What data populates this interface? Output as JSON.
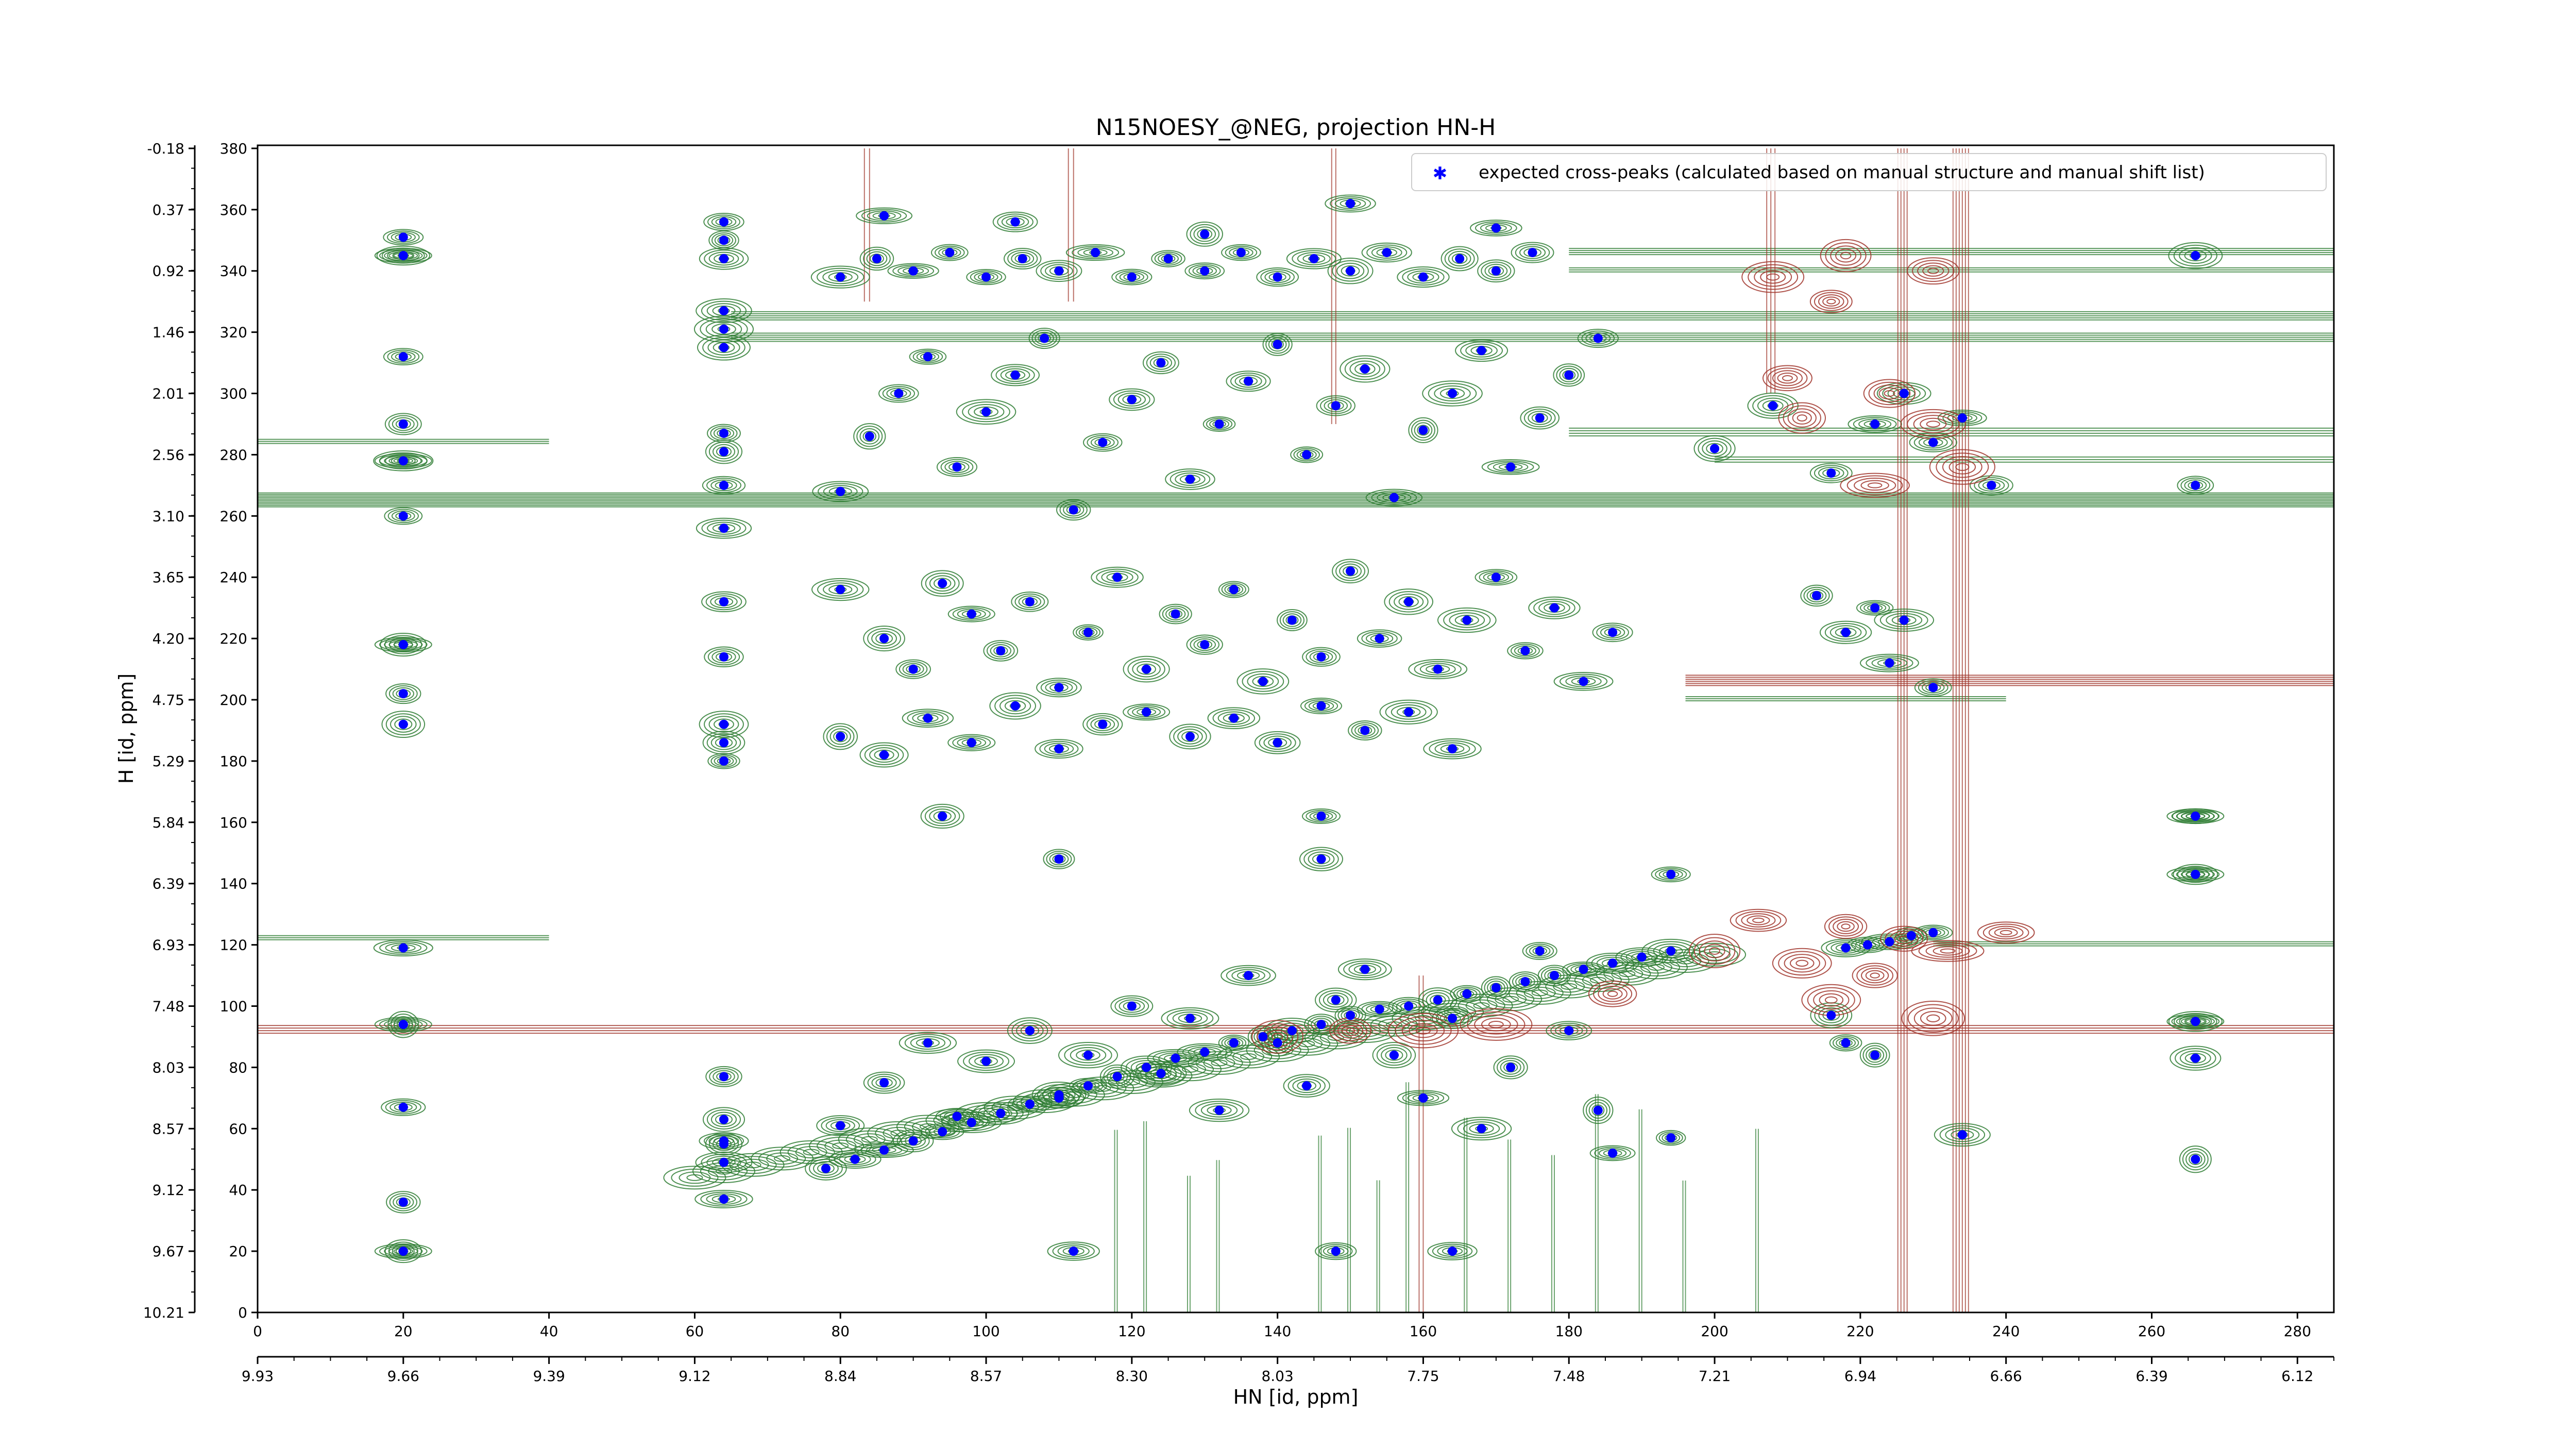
{
  "chart_data": {
    "type": "scatter",
    "title": "N15NOESY_@NEG, projection HN-H",
    "xlabel": "HN [id, ppm]",
    "ylabel": "H [id, ppm]",
    "x_index_ticks": [
      "0",
      "20",
      "40",
      "60",
      "80",
      "100",
      "120",
      "140",
      "160",
      "180",
      "200",
      "220",
      "240",
      "260",
      "280"
    ],
    "x_ppm_ticks": [
      "9.93",
      "9.66",
      "9.39",
      "9.12",
      "8.84",
      "8.57",
      "8.30",
      "8.03",
      "7.75",
      "7.48",
      "7.21",
      "6.94",
      "6.66",
      "6.39",
      "6.12"
    ],
    "y_index_ticks": [
      "0",
      "20",
      "40",
      "60",
      "80",
      "100",
      "120",
      "140",
      "160",
      "180",
      "200",
      "220",
      "240",
      "260",
      "280",
      "300",
      "320",
      "340",
      "360",
      "380"
    ],
    "y_ppm_ticks": [
      "10.21",
      "9.67",
      "9.12",
      "8.57",
      "8.03",
      "7.48",
      "6.93",
      "6.39",
      "5.84",
      "5.29",
      "4.75",
      "4.20",
      "3.65",
      "3.10",
      "2.56",
      "2.01",
      "1.46",
      "0.92",
      "0.37",
      "-0.18"
    ],
    "xlim": [
      0,
      285
    ],
    "ylim": [
      0,
      381
    ],
    "legend": {
      "label": "expected cross-peaks (calculated based on manual structure and manual shift list)",
      "position": "top-right"
    },
    "colors": {
      "positive_contour": "#2e7d32",
      "negative_contour": "#a0342a",
      "marker": "#0000ff"
    },
    "series": [
      {
        "name": "expected cross-peaks (calculated based on manual structure and manual shift list)",
        "points": [
          [
            20,
            20
          ],
          [
            20,
            36
          ],
          [
            20,
            67
          ],
          [
            20,
            94
          ],
          [
            20,
            119
          ],
          [
            20,
            192
          ],
          [
            20,
            202
          ],
          [
            20,
            218
          ],
          [
            20,
            260
          ],
          [
            20,
            278
          ],
          [
            20,
            290
          ],
          [
            20,
            312
          ],
          [
            20,
            345
          ],
          [
            20,
            351
          ],
          [
            64,
            37
          ],
          [
            64,
            49
          ],
          [
            64,
            55
          ],
          [
            64,
            63
          ],
          [
            64,
            56
          ],
          [
            64,
            77
          ],
          [
            64,
            180
          ],
          [
            64,
            186
          ],
          [
            64,
            192
          ],
          [
            64,
            214
          ],
          [
            64,
            232
          ],
          [
            64,
            256
          ],
          [
            64,
            270
          ],
          [
            64,
            281
          ],
          [
            64,
            287
          ],
          [
            64,
            315
          ],
          [
            64,
            321
          ],
          [
            64,
            327
          ],
          [
            64,
            344
          ],
          [
            64,
            350
          ],
          [
            64,
            356
          ],
          [
            78,
            47
          ],
          [
            82,
            50
          ],
          [
            86,
            53
          ],
          [
            90,
            56
          ],
          [
            94,
            59
          ],
          [
            98,
            62
          ],
          [
            102,
            65
          ],
          [
            106,
            68
          ],
          [
            110,
            71
          ],
          [
            114,
            74
          ],
          [
            118,
            77
          ],
          [
            122,
            80
          ],
          [
            126,
            83
          ],
          [
            130,
            85
          ],
          [
            134,
            88
          ],
          [
            138,
            90
          ],
          [
            142,
            92
          ],
          [
            146,
            94
          ],
          [
            150,
            97
          ],
          [
            154,
            99
          ],
          [
            158,
            100
          ],
          [
            162,
            102
          ],
          [
            166,
            104
          ],
          [
            170,
            106
          ],
          [
            174,
            108
          ],
          [
            178,
            110
          ],
          [
            182,
            112
          ],
          [
            186,
            114
          ],
          [
            190,
            116
          ],
          [
            194,
            118
          ],
          [
            218,
            119
          ],
          [
            221,
            120
          ],
          [
            224,
            121
          ],
          [
            227,
            123
          ],
          [
            230,
            124
          ],
          [
            80,
            61
          ],
          [
            86,
            75
          ],
          [
            92,
            88
          ],
          [
            96,
            64
          ],
          [
            100,
            82
          ],
          [
            106,
            92
          ],
          [
            110,
            70
          ],
          [
            114,
            84
          ],
          [
            120,
            100
          ],
          [
            124,
            78
          ],
          [
            128,
            96
          ],
          [
            132,
            66
          ],
          [
            136,
            110
          ],
          [
            140,
            88
          ],
          [
            144,
            74
          ],
          [
            148,
            102
          ],
          [
            152,
            112
          ],
          [
            156,
            84
          ],
          [
            160,
            70
          ],
          [
            164,
            96
          ],
          [
            168,
            60
          ],
          [
            172,
            80
          ],
          [
            176,
            118
          ],
          [
            180,
            92
          ],
          [
            184,
            66
          ],
          [
            186,
            52
          ],
          [
            148,
            20
          ],
          [
            164,
            20
          ],
          [
            112,
            20
          ],
          [
            80,
            236
          ],
          [
            86,
            220
          ],
          [
            90,
            210
          ],
          [
            94,
            238
          ],
          [
            98,
            228
          ],
          [
            102,
            216
          ],
          [
            106,
            232
          ],
          [
            110,
            204
          ],
          [
            114,
            222
          ],
          [
            118,
            240
          ],
          [
            122,
            210
          ],
          [
            126,
            228
          ],
          [
            130,
            218
          ],
          [
            134,
            236
          ],
          [
            138,
            206
          ],
          [
            142,
            226
          ],
          [
            146,
            214
          ],
          [
            150,
            242
          ],
          [
            154,
            220
          ],
          [
            158,
            232
          ],
          [
            162,
            210
          ],
          [
            166,
            226
          ],
          [
            170,
            240
          ],
          [
            174,
            216
          ],
          [
            178,
            230
          ],
          [
            182,
            206
          ],
          [
            186,
            222
          ],
          [
            80,
            188
          ],
          [
            86,
            182
          ],
          [
            92,
            194
          ],
          [
            98,
            186
          ],
          [
            104,
            198
          ],
          [
            110,
            184
          ],
          [
            116,
            192
          ],
          [
            122,
            196
          ],
          [
            128,
            188
          ],
          [
            134,
            194
          ],
          [
            140,
            186
          ],
          [
            146,
            198
          ],
          [
            152,
            190
          ],
          [
            158,
            196
          ],
          [
            164,
            184
          ],
          [
            80,
            268
          ],
          [
            84,
            286
          ],
          [
            88,
            300
          ],
          [
            92,
            312
          ],
          [
            96,
            276
          ],
          [
            100,
            294
          ],
          [
            104,
            306
          ],
          [
            108,
            318
          ],
          [
            112,
            262
          ],
          [
            116,
            284
          ],
          [
            120,
            298
          ],
          [
            124,
            310
          ],
          [
            128,
            272
          ],
          [
            132,
            290
          ],
          [
            136,
            304
          ],
          [
            140,
            316
          ],
          [
            144,
            280
          ],
          [
            148,
            296
          ],
          [
            152,
            308
          ],
          [
            156,
            266
          ],
          [
            160,
            288
          ],
          [
            164,
            300
          ],
          [
            168,
            314
          ],
          [
            172,
            276
          ],
          [
            176,
            292
          ],
          [
            180,
            306
          ],
          [
            184,
            318
          ],
          [
            80,
            338
          ],
          [
            85,
            344
          ],
          [
            90,
            340
          ],
          [
            95,
            346
          ],
          [
            100,
            338
          ],
          [
            105,
            344
          ],
          [
            110,
            340
          ],
          [
            115,
            346
          ],
          [
            120,
            338
          ],
          [
            125,
            344
          ],
          [
            130,
            340
          ],
          [
            135,
            346
          ],
          [
            140,
            338
          ],
          [
            145,
            344
          ],
          [
            150,
            340
          ],
          [
            155,
            346
          ],
          [
            160,
            338
          ],
          [
            165,
            344
          ],
          [
            170,
            340
          ],
          [
            175,
            346
          ],
          [
            86,
            358
          ],
          [
            104,
            356
          ],
          [
            130,
            352
          ],
          [
            150,
            362
          ],
          [
            170,
            354
          ],
          [
            94,
            162
          ],
          [
            110,
            148
          ],
          [
            146,
            162
          ],
          [
            146,
            148
          ],
          [
            194,
            143
          ],
          [
            266,
            143
          ],
          [
            266,
            162
          ],
          [
            266,
            95
          ],
          [
            266,
            83
          ],
          [
            266,
            50
          ],
          [
            266,
            345
          ],
          [
            266,
            270
          ],
          [
            200,
            282
          ],
          [
            208,
            296
          ],
          [
            216,
            274
          ],
          [
            222,
            290
          ],
          [
            226,
            300
          ],
          [
            230,
            284
          ],
          [
            234,
            292
          ],
          [
            238,
            270
          ],
          [
            214,
            234
          ],
          [
            222,
            230
          ],
          [
            226,
            226
          ],
          [
            230,
            204
          ],
          [
            224,
            212
          ],
          [
            218,
            222
          ],
          [
            216,
            97
          ],
          [
            218,
            88
          ],
          [
            222,
            84
          ],
          [
            234,
            58
          ],
          [
            194,
            57
          ]
        ]
      }
    ]
  }
}
